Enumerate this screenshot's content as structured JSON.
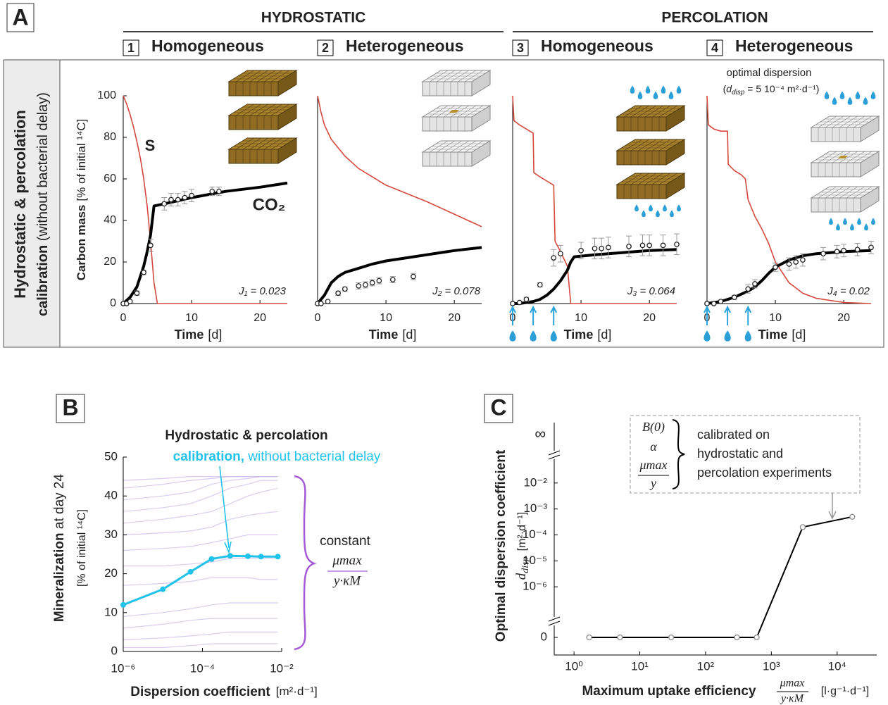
{
  "panel_labels": [
    "A",
    "B",
    "C"
  ],
  "panel_a": {
    "group_titles": [
      "HYDROSTATIC",
      "PERCOLATION"
    ],
    "row_label": [
      "Hydrostatic & percolation",
      "calibration",
      " (without bacterial delay)"
    ],
    "optimal_label": "optimal dispersion",
    "optimal_formula": [
      "(",
      "d",
      "disp",
      " = 5 10⁻⁴ m²·d⁻¹)"
    ]
  },
  "chart_data": [
    {
      "type": "line",
      "number": "1",
      "title": "Homogeneous",
      "title_color": "#b41ed8",
      "xlabel": [
        "Time",
        "[d]"
      ],
      "ylabel": [
        "Carbon mass",
        "[% of initial ¹⁴C]"
      ],
      "xlim": [
        0,
        24
      ],
      "ylim": [
        0,
        100
      ],
      "xticks": [
        0,
        10,
        20
      ],
      "yticks": [
        0,
        20,
        40,
        60,
        80,
        100
      ],
      "series": [
        {
          "name": "S",
          "color": "#d5483c",
          "x": [
            0,
            0.5,
            1,
            1.5,
            2,
            2.5,
            3,
            3.5,
            4,
            4.5,
            5,
            24
          ],
          "values": [
            100,
            96,
            91,
            85,
            78,
            70,
            60,
            47,
            30,
            10,
            0,
            0
          ]
        },
        {
          "name": "CO₂",
          "color": "#000000",
          "x": [
            0,
            1,
            2,
            3,
            3.5,
            4,
            4.5,
            6,
            10,
            15,
            20,
            24
          ],
          "values": [
            0,
            3,
            8,
            18,
            25,
            33,
            47,
            48,
            51,
            54,
            56,
            58
          ]
        }
      ],
      "observations": {
        "color": "#222222",
        "x": [
          0,
          0.5,
          1,
          2,
          3,
          4,
          6,
          7,
          8,
          9,
          10,
          13,
          14
        ],
        "values": [
          0,
          0,
          1,
          5,
          15,
          28,
          48,
          50,
          50,
          51,
          52,
          54,
          54
        ],
        "errors": [
          null,
          null,
          null,
          1,
          1,
          3,
          3,
          3,
          3,
          3,
          3,
          2,
          2
        ]
      },
      "annotation": "J₁ = 0.023"
    },
    {
      "type": "line",
      "number": "2",
      "title": "Heterogeneous",
      "title_color": "#f0a420",
      "xlabel": [
        "Time",
        "[d]"
      ],
      "xlim": [
        0,
        24
      ],
      "ylim": [
        0,
        100
      ],
      "xticks": [
        0,
        10,
        20
      ],
      "series": [
        {
          "color": "#d5483c",
          "x": [
            0,
            0.5,
            1,
            2,
            3,
            4,
            6,
            8,
            10,
            13,
            16,
            20,
            24
          ],
          "values": [
            100,
            92,
            86,
            79,
            75,
            71,
            65,
            61,
            57,
            53,
            49,
            43,
            37
          ]
        },
        {
          "color": "#000000",
          "x": [
            0,
            1,
            2,
            3,
            4,
            6,
            8,
            10,
            13,
            16,
            20,
            24
          ],
          "values": [
            0,
            4,
            10,
            13,
            15,
            17,
            19,
            20.5,
            22,
            23.5,
            25.5,
            27
          ]
        }
      ],
      "observations": {
        "color": "#222222",
        "x": [
          0,
          0.5,
          1.5,
          3,
          4,
          6,
          7,
          8,
          9,
          11,
          14
        ],
        "values": [
          0,
          0,
          1,
          5,
          7,
          8.5,
          9,
          10,
          11,
          11.5,
          13
        ],
        "errors": [
          null,
          null,
          null,
          1,
          1,
          1.5,
          1.5,
          1.5,
          1.5,
          1.5,
          1.5
        ]
      },
      "annotation": "J₂ = 0.078"
    },
    {
      "type": "line",
      "number": "3",
      "title": "Homogeneous",
      "title_color": "#b41ed8",
      "xlabel": [
        "Time",
        "[d]"
      ],
      "xlim": [
        0,
        24
      ],
      "ylim": [
        0,
        100
      ],
      "xticks": [
        0,
        10,
        20
      ],
      "irrigation_x": [
        0,
        3,
        6
      ],
      "series": [
        {
          "color": "#d5483c",
          "x": [
            0,
            0.2,
            1,
            2,
            3,
            3.1,
            4,
            5,
            6,
            6.2,
            7,
            8,
            8.5,
            24
          ],
          "values": [
            100,
            88,
            86,
            84,
            82,
            63,
            61,
            59,
            57,
            30,
            25,
            18,
            0,
            0
          ]
        },
        {
          "color": "#000000",
          "x": [
            0,
            1,
            2,
            3,
            4,
            5,
            6,
            7,
            8,
            8.5,
            9,
            12,
            16,
            20,
            24
          ],
          "values": [
            0,
            0,
            0.5,
            1,
            2,
            4,
            7,
            11,
            16,
            20,
            22.5,
            23.5,
            24.5,
            25.5,
            26
          ]
        }
      ],
      "observations": {
        "color": "#222222",
        "x": [
          0,
          1,
          2,
          4,
          6,
          7,
          10,
          12,
          13,
          14,
          17,
          19,
          20,
          22,
          24
        ],
        "values": [
          0,
          0.5,
          2,
          9,
          22,
          24,
          25.5,
          26.5,
          26.5,
          27,
          27.5,
          28,
          28,
          28,
          28.5
        ],
        "errors": [
          null,
          null,
          1,
          1,
          4,
          4,
          4,
          5,
          5,
          5,
          5,
          5,
          5,
          5,
          5
        ]
      },
      "annotation": "J₃ = 0.064"
    },
    {
      "type": "line",
      "number": "4",
      "title": "Heterogeneous",
      "title_color": "#f0a420",
      "xlabel": [
        "Time",
        "[d]"
      ],
      "xlim": [
        0,
        24
      ],
      "ylim": [
        0,
        100
      ],
      "xticks": [
        0,
        10,
        20
      ],
      "irrigation_x": [
        0,
        3,
        6
      ],
      "series": [
        {
          "color": "#d5483c",
          "x": [
            0,
            0.2,
            1,
            2,
            3,
            3.1,
            4,
            5,
            5.6,
            6,
            7,
            8,
            9,
            10,
            12,
            14,
            16,
            20,
            24
          ],
          "values": [
            100,
            86,
            84,
            83,
            83,
            67,
            64,
            62,
            60,
            50,
            42,
            36,
            29,
            20,
            10,
            5,
            2.5,
            0.5,
            0
          ]
        },
        {
          "color": "#000000",
          "x": [
            0,
            2,
            4,
            6,
            7,
            8,
            9,
            10,
            12,
            14,
            16,
            18,
            20,
            24
          ],
          "values": [
            0,
            1,
            3,
            6,
            8,
            11,
            14.5,
            17.5,
            21,
            23,
            24,
            24.5,
            25,
            25.5
          ]
        }
      ],
      "observations": {
        "color": "#222222",
        "x": [
          0,
          1,
          2,
          4,
          6,
          7,
          10,
          12,
          13,
          14,
          17,
          19,
          20,
          22,
          24
        ],
        "values": [
          0,
          0,
          1,
          3,
          7,
          9.5,
          17.5,
          19,
          20,
          21,
          24,
          25,
          25.5,
          26,
          27
        ],
        "errors": [
          null,
          null,
          null,
          1,
          2,
          2,
          2,
          3,
          3,
          3,
          3,
          3,
          3,
          3,
          3
        ]
      },
      "annotation": "J₄ = 0.02"
    },
    {
      "type": "line",
      "xlabel": [
        "Dispersion coefficient",
        "[m²·d⁻¹]"
      ],
      "ylabel": [
        "Mineralization",
        " at day 24",
        "[% of initial ¹⁴C]"
      ],
      "xscale": "log",
      "xlim": [
        1e-06,
        0.01
      ],
      "xticks": [
        {
          "value": 1e-06,
          "label": "10⁻⁶"
        },
        {
          "value": 0.0001,
          "label": "10⁻⁴"
        },
        {
          "value": 0.01,
          "label": "10⁻²"
        }
      ],
      "ylim": [
        0,
        50
      ],
      "yticks": [
        0,
        10,
        20,
        30,
        40,
        50
      ],
      "x": [
        1e-06,
        1e-05,
        5e-05,
        0.00017,
        0.0005,
        0.0014,
        0.003,
        0.008
      ],
      "series": [
        {
          "color": "#22c3ea",
          "values": [
            12,
            16,
            20.5,
            23.8,
            24.6,
            24.5,
            24.4,
            24.4
          ]
        }
      ],
      "background_color": "#c9b5ea",
      "background_series": [
        [
          44,
          44.5,
          45,
          45,
          45,
          45,
          45,
          45
        ],
        [
          42,
          43,
          44,
          44.5,
          45,
          45,
          45,
          45
        ],
        [
          39,
          40,
          41,
          43,
          44,
          44.5,
          45,
          45
        ],
        [
          36,
          37,
          38,
          40,
          42,
          43,
          44,
          44
        ],
        [
          33,
          34,
          35,
          36,
          38,
          40,
          41,
          42
        ],
        [
          30,
          30.5,
          31,
          32,
          34,
          35,
          35.5,
          36
        ],
        [
          26,
          26.5,
          27,
          28,
          29,
          30,
          30,
          30
        ],
        [
          22,
          22,
          22.5,
          23,
          24,
          24,
          24,
          24
        ],
        [
          17,
          17.5,
          18,
          19,
          19,
          19,
          18.5,
          18.5
        ],
        [
          9,
          10,
          11,
          12,
          12.5,
          12.5,
          12.5,
          12.5
        ],
        [
          6,
          7,
          8,
          8.5,
          8.5,
          8.5,
          8.5,
          8.5
        ],
        [
          3,
          3.5,
          4,
          4.5,
          5,
          5,
          5,
          5
        ],
        [
          1,
          1,
          1.5,
          2,
          2,
          2,
          2,
          2
        ]
      ],
      "annotation": [
        "Hydrostatic & percolation",
        "calibration,",
        " without bacterial delay"
      ],
      "bracket_label": [
        "constant",
        "μmax",
        "y·κM"
      ]
    },
    {
      "type": "line",
      "xlabel": [
        "Maximum uptake efficiency",
        "μmax",
        "y·κM",
        "[l·g⁻¹·d⁻¹]"
      ],
      "ylabel": [
        "Optimal dispersion coefficient",
        "d",
        "disp",
        "[m²·d⁻¹]"
      ],
      "xscale": "log",
      "yscale": "log",
      "xlim": [
        0.5,
        40000
      ],
      "xticks": [
        {
          "value": 1,
          "label": "10⁰"
        },
        {
          "value": 10,
          "label": "10¹"
        },
        {
          "value": 100,
          "label": "10²"
        },
        {
          "value": 1000,
          "label": "10³"
        },
        {
          "value": 10000,
          "label": "10⁴"
        }
      ],
      "ylim": [
        1e-07,
        0.1
      ],
      "yticks": [
        {
          "value": 0.01,
          "label": "10⁻²"
        },
        {
          "value": 0.001,
          "label": "10⁻³"
        },
        {
          "value": 0.0001,
          "label": "10⁻⁴"
        },
        {
          "value": 1e-05,
          "label": "10⁻⁵"
        },
        {
          "value": 1e-06,
          "label": "10⁻⁶"
        },
        0
      ],
      "y_break_label": "∞",
      "x": [
        1.7,
        5,
        30,
        300,
        600,
        3000,
        17000
      ],
      "series": [
        {
          "color": "#000000",
          "values": [
            0,
            0,
            0,
            0,
            0,
            0.0002,
            0.0005
          ]
        }
      ],
      "annotation": {
        "symbols": [
          "B(0)",
          "α",
          "μmax",
          "y"
        ],
        "text": [
          "calibrated on",
          "hydrostatic and",
          "percolation experiments"
        ]
      }
    }
  ]
}
